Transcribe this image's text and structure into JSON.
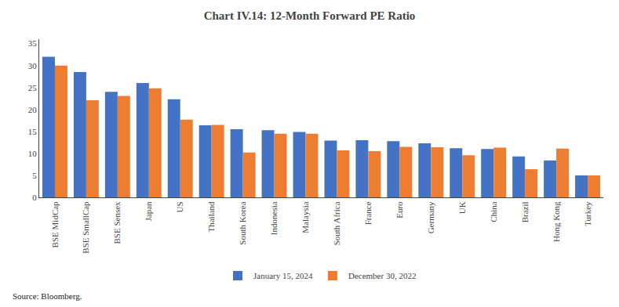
{
  "chart_data": {
    "type": "bar",
    "title": "Chart IV.14: 12-Month Forward PE Ratio",
    "categories": [
      "BSE MidCap",
      "BSE SmallCap",
      "BSE Sensex",
      "Japan",
      "US",
      "Thailand",
      "South Korea",
      "Indonesia",
      "Malaysia",
      "South Africa",
      "France",
      "Euro",
      "Germany",
      "UK",
      "China",
      "Brazil",
      "Hong Kong",
      "Turkey"
    ],
    "series": [
      {
        "name": "January 15, 2024",
        "color": "#4472C4",
        "values": [
          32.0,
          28.5,
          24.0,
          26.0,
          22.3,
          16.4,
          15.5,
          15.3,
          14.9,
          12.9,
          13.0,
          12.8,
          12.3,
          11.2,
          11.0,
          9.3,
          8.4,
          5.0
        ]
      },
      {
        "name": "December 30, 2022",
        "color": "#ED7D31",
        "values": [
          30.0,
          22.1,
          23.1,
          24.8,
          17.7,
          16.5,
          10.2,
          14.5,
          14.5,
          10.7,
          10.5,
          11.5,
          11.4,
          9.6,
          11.3,
          6.4,
          11.1,
          5.0
        ]
      }
    ],
    "ylim": [
      0,
      36
    ],
    "yticks": [
      0,
      5,
      10,
      15,
      20,
      25,
      30,
      35
    ],
    "grid": false,
    "legend": "bottom",
    "annotations": [
      "Source: Bloomberg."
    ]
  }
}
